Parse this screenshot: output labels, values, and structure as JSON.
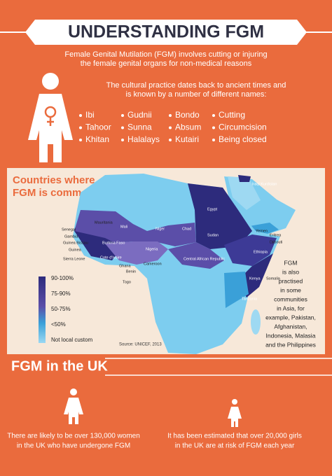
{
  "header": {
    "title": "UNDERSTANDING FGM",
    "intro": [
      "Female Genital Mutilation (FGM) involves cutting or injuring",
      "the female genital organs for non-medical reasons"
    ]
  },
  "names_intro": [
    "The cultural practice dates back to ancient times and",
    "is known by a number of different names:"
  ],
  "names": [
    [
      "Ibi",
      "Tahoor",
      "Khitan"
    ],
    [
      "Gudnii",
      "Sunna",
      "Halalays"
    ],
    [
      "Bondo",
      "Absum",
      "Kutairi"
    ],
    [
      "Cutting",
      "Circumcision",
      "Being closed"
    ]
  ],
  "map": {
    "title": [
      "Countries where",
      "FGM is common"
    ],
    "countries": [
      "Iraqi Kurdistan",
      "Egypt",
      "Yemen",
      "Eritrea",
      "Djibouti",
      "Mauritania",
      "Mali",
      "Niger",
      "Chad",
      "Sudan",
      "Senegal",
      "Gambia",
      "Guinea Bissau",
      "Guinea",
      "Sierra Leone",
      "Burkina Faso",
      "Nigeria",
      "Ethiopia",
      "Cote d'Ivoire",
      "Ghana",
      "Cameroon",
      "Benin",
      "Togo",
      "Central African Republic",
      "Somalia",
      "Kenya",
      "Tanzania"
    ],
    "legend": [
      "90-100%",
      "75-90%",
      "50-75%",
      "<50%",
      "Not local custom"
    ],
    "source": "Source: UNICEF, 2013",
    "note": [
      "FGM",
      "is also",
      "practised",
      "in some",
      "communities",
      "in Asia, for",
      "example, Pakistan,",
      "Afghanistan,",
      "Indonesia, Malasia",
      "and the Philippines"
    ]
  },
  "uk": {
    "title": "FGM in the UK",
    "facts": [
      [
        "There are likely to be over 130,000 women",
        "in the UK who have undergone FGM"
      ],
      [
        "It has been estimated that over 20,000 girls",
        "in the UK are at risk of FGM each year"
      ]
    ]
  }
}
